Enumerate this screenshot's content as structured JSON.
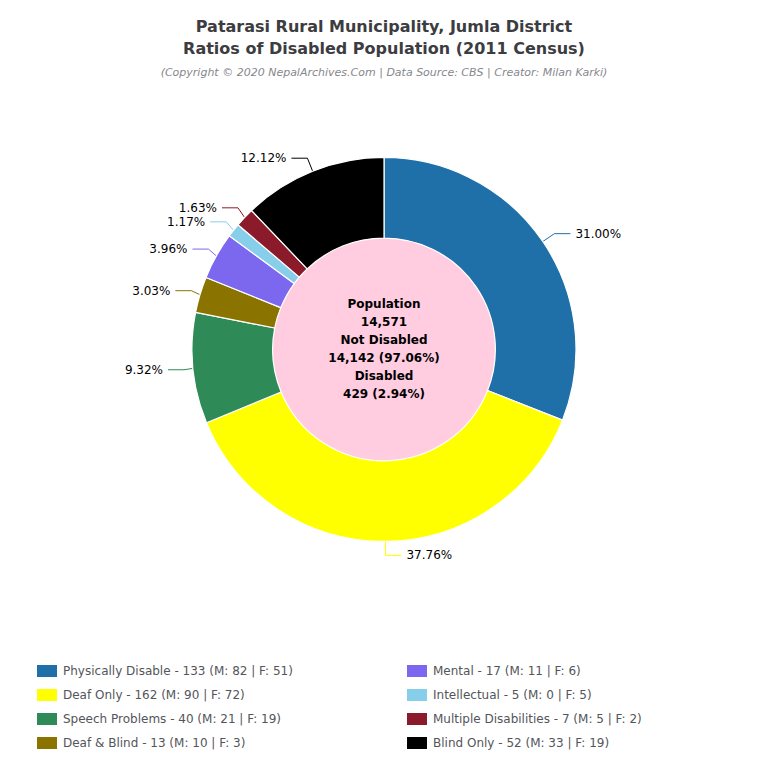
{
  "chart_data": {
    "type": "pie",
    "title": [
      "Patarasi Rural Municipality, Jumla District",
      "Ratios of Disabled Population (2011 Census)"
    ],
    "subtitle": "(Copyright © 2020 NepalArchives.Com | Data Source: CBS | Creator: Milan Karki)",
    "categories": [
      "Physically Disable - 133 (M: 82 | F: 51)",
      "Deaf Only - 162 (M: 90 | F: 72)",
      "Speech Problems - 40 (M: 21 | F: 19)",
      "Deaf & Blind - 13 (M: 10 | F: 3)",
      "Mental - 17 (M: 11 | F: 6)",
      "Intellectual - 5 (M: 0 | F: 5)",
      "Multiple Disabilities - 7 (M: 5 | F: 2)",
      "Blind Only - 52 (M: 33 | F: 19)"
    ],
    "values": [
      31.0,
      37.76,
      9.32,
      3.03,
      3.96,
      1.17,
      1.63,
      12.12
    ],
    "value_labels": [
      "31.00%",
      "37.76%",
      "9.32%",
      "3.03%",
      "3.96%",
      "1.17%",
      "1.63%",
      "12.12%"
    ],
    "data_labels": true,
    "colors": [
      "#1f6fa8",
      "#ffff00",
      "#2e8b57",
      "#8b7300",
      "#7b68ee",
      "#87ceeb",
      "#8b1a2a",
      "#000000"
    ],
    "annotations": [
      "Population",
      "14,571",
      "Not Disabled",
      "14,142 (97.06%)",
      "Disabled",
      "429 (2.94%)"
    ],
    "center_color": "#ffcce0",
    "background_color": "#ffffff",
    "legend": "bottom"
  }
}
